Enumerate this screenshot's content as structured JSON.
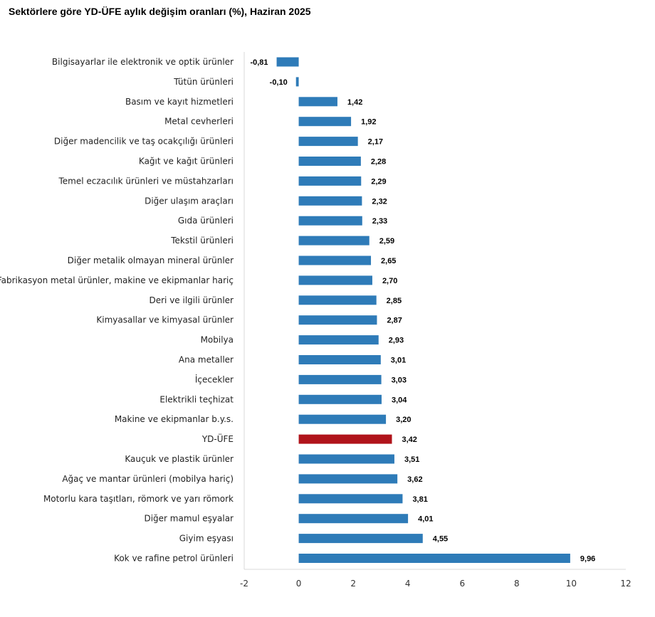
{
  "chart_data": {
    "type": "bar",
    "orientation": "horizontal",
    "title": "Sektörlere göre YD-ÜFE aylık değişim oranları (%), Haziran 2025",
    "xlabel": "",
    "ylabel": "",
    "xlim": [
      -2,
      12
    ],
    "xticks": [
      -2,
      0,
      2,
      4,
      6,
      8,
      10,
      12
    ],
    "xtick_labels": [
      "-2",
      "0",
      "2",
      "4",
      "6",
      "8",
      "10",
      "12"
    ],
    "grid": false,
    "legend": "none",
    "bar_color": "#2E7BB8",
    "highlight_color": "#B0141B",
    "highlight_category": "YD-ÜFE",
    "categories": [
      "Bilgisayarlar ile elektronik ve optik ürünler",
      "Tütün ürünleri",
      "Basım ve kayıt hizmetleri",
      "Metal cevherleri",
      "Diğer madencilik ve taş ocakçılığı ürünleri",
      "Kağıt ve kağıt ürünleri",
      "Temel eczacılık ürünleri ve müstahzarları",
      "Diğer ulaşım araçları",
      "Gıda ürünleri",
      "Tekstil ürünleri",
      "Diğer metalik olmayan mineral ürünler",
      "Fabrikasyon metal ürünler, makine ve ekipmanlar hariç",
      "Deri ve ilgili ürünler",
      "Kimyasallar ve kimyasal ürünler",
      "Mobilya",
      "Ana metaller",
      "İçecekler",
      "Elektrikli teçhizat",
      "Makine ve ekipmanlar b.y.s.",
      "YD-ÜFE",
      "Kauçuk ve plastik ürünler",
      "Ağaç ve mantar ürünleri (mobilya hariç)",
      "Motorlu kara taşıtları, römork ve yarı römork",
      "Diğer mamul eşyalar",
      "Giyim eşyası",
      "Kok ve rafine petrol ürünleri"
    ],
    "values": [
      -0.81,
      -0.1,
      1.42,
      1.92,
      2.17,
      2.28,
      2.29,
      2.32,
      2.33,
      2.59,
      2.65,
      2.7,
      2.85,
      2.87,
      2.93,
      3.01,
      3.03,
      3.04,
      3.2,
      3.42,
      3.51,
      3.62,
      3.81,
      4.01,
      4.55,
      9.96
    ],
    "value_labels": [
      "-0,81",
      "-0,10",
      "1,42",
      "1,92",
      "2,17",
      "2,28",
      "2,29",
      "2,32",
      "2,33",
      "2,59",
      "2,65",
      "2,70",
      "2,85",
      "2,87",
      "2,93",
      "3,01",
      "3,03",
      "3,04",
      "3,20",
      "3,42",
      "3,51",
      "3,62",
      "3,81",
      "4,01",
      "4,55",
      "9,96"
    ]
  }
}
